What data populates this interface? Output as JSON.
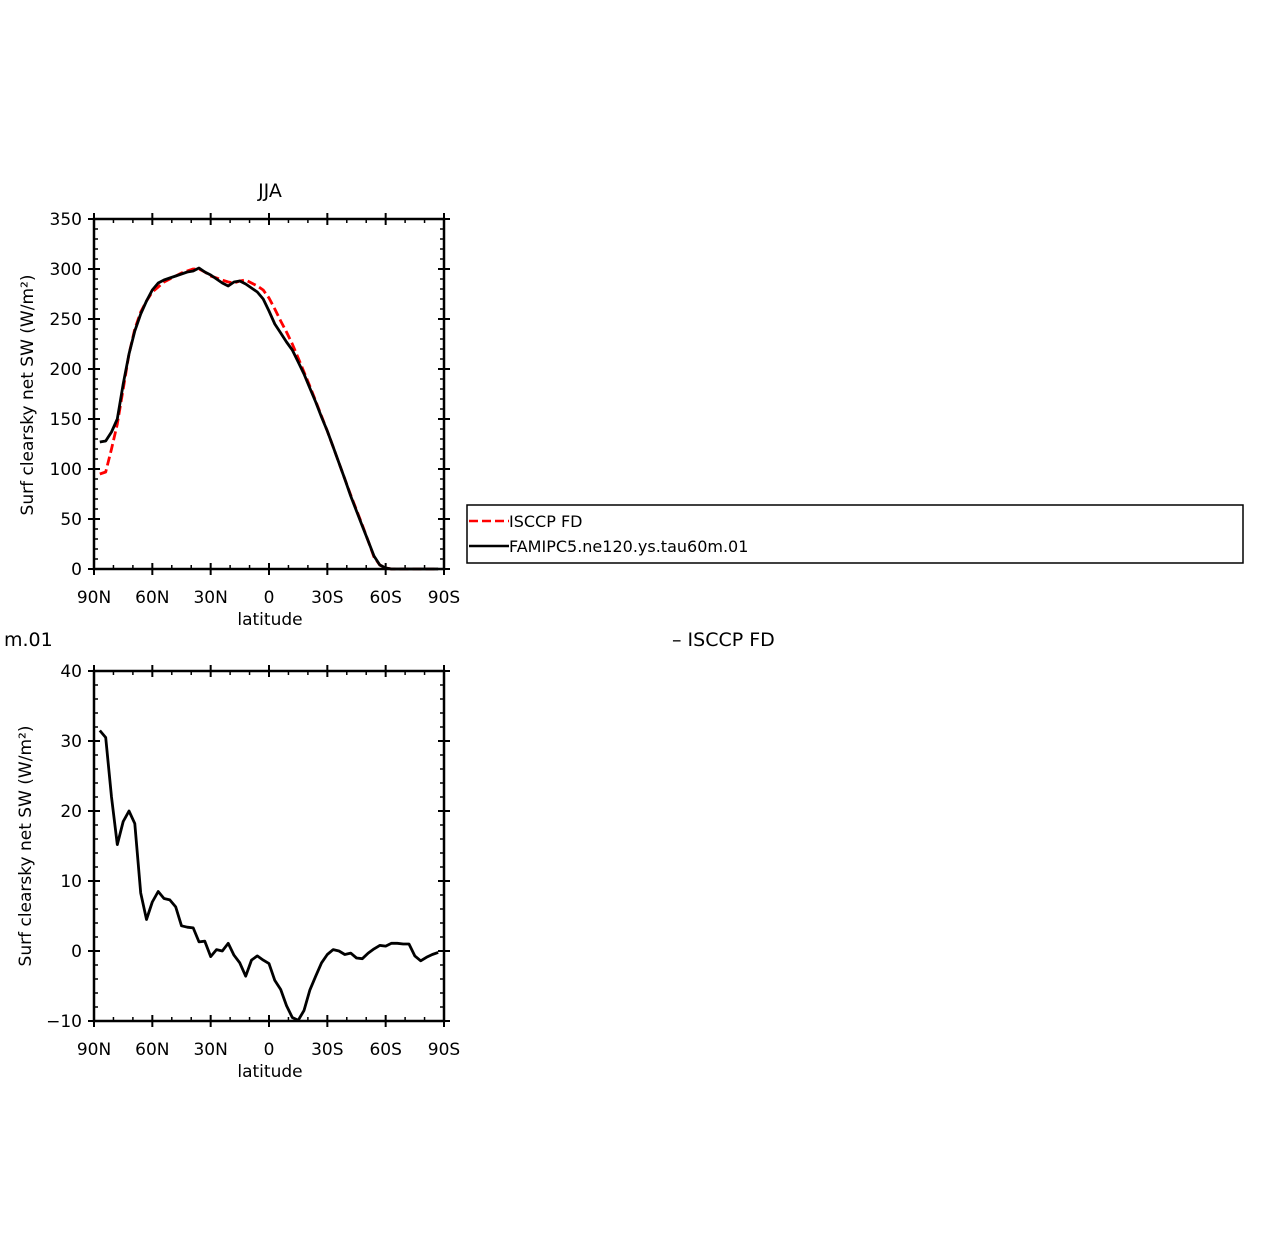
{
  "clipped_title_left": "m.01",
  "clipped_title_right": "– ISCCP FD",
  "chart_data": [
    {
      "type": "line",
      "title": "JJA",
      "xlabel": "latitude",
      "ylabel": "Surf clearsky net SW (W/m²)",
      "xlim": [
        90,
        -90
      ],
      "ylim": [
        0,
        350
      ],
      "yticks": [
        0,
        50,
        100,
        150,
        200,
        250,
        300,
        350
      ],
      "ytick_labels": [
        "0",
        "50",
        "100",
        "150",
        "200",
        "250",
        "300",
        "350"
      ],
      "xticks": [
        90,
        60,
        30,
        0,
        -30,
        -60,
        -90
      ],
      "xtick_labels": [
        "90N",
        "60N",
        "30N",
        "0",
        "30S",
        "60S",
        "90S"
      ],
      "grid": false,
      "legend": {
        "placement": "right",
        "entries": [
          "ISCCP FD",
          "FAMIPC5.ne120.ys.tau60m.01"
        ]
      },
      "series": [
        {
          "name": "ISCCP FD",
          "color": "#ff0000",
          "dash": "dashed",
          "x": [
            87,
            84,
            81,
            78,
            75,
            72,
            69,
            66,
            63,
            60,
            57,
            54,
            51,
            48,
            45,
            42,
            39,
            36,
            33,
            30,
            27,
            24,
            21,
            18,
            15,
            12,
            9,
            6,
            3,
            0,
            -3,
            -6,
            -9,
            -12,
            -15,
            -18,
            -21,
            -24,
            -27,
            -30,
            -33,
            -36,
            -39,
            -42,
            -45,
            -48,
            -51,
            -54,
            -57,
            -60,
            -63,
            -66,
            -69,
            -72,
            -75,
            -78,
            -81,
            -84,
            -87
          ],
          "values": [
            95,
            97,
            120,
            145,
            180,
            215,
            240,
            257,
            268,
            277,
            282,
            287,
            290,
            293,
            296,
            298,
            300,
            300,
            297,
            293,
            291,
            289,
            287,
            286,
            288,
            289,
            286,
            283,
            279,
            271,
            260,
            248,
            237,
            225,
            211,
            197,
            183,
            168,
            153,
            138,
            122,
            106,
            90,
            74,
            59,
            44,
            28,
            12,
            4,
            1,
            0,
            0,
            0,
            0,
            0,
            0,
            0,
            0,
            0
          ]
        },
        {
          "name": "FAMIPC5.ne120.ys.tau60m.01",
          "color": "#000000",
          "dash": "solid",
          "x": [
            87,
            84,
            81,
            78,
            75,
            72,
            69,
            66,
            63,
            60,
            57,
            54,
            51,
            48,
            45,
            42,
            39,
            36,
            33,
            30,
            27,
            24,
            21,
            18,
            15,
            12,
            9,
            6,
            3,
            0,
            -3,
            -6,
            -9,
            -12,
            -15,
            -18,
            -21,
            -24,
            -27,
            -30,
            -33,
            -36,
            -39,
            -42,
            -45,
            -48,
            -51,
            -54,
            -57,
            -60,
            -63,
            -66,
            -69,
            -72,
            -75,
            -78,
            -81,
            -84,
            -87
          ],
          "values": [
            127,
            128,
            137,
            150,
            185,
            215,
            238,
            255,
            268,
            279,
            286,
            289,
            291,
            293,
            295,
            297,
            298,
            301,
            297,
            294,
            290,
            286,
            283,
            287,
            288,
            285,
            281,
            277,
            270,
            258,
            245,
            236,
            227,
            219,
            207,
            195,
            181,
            167,
            152,
            138,
            122,
            106,
            90,
            73,
            58,
            43,
            28,
            13,
            4,
            1,
            0,
            0,
            0,
            0,
            0,
            0,
            0,
            0,
            0
          ]
        }
      ]
    },
    {
      "type": "line",
      "title": "",
      "xlabel": "latitude",
      "ylabel": "Surf clearsky net SW (W/m²)",
      "xlim": [
        90,
        -90
      ],
      "ylim": [
        -10,
        40
      ],
      "yticks": [
        -10,
        0,
        10,
        20,
        30,
        40
      ],
      "ytick_labels": [
        "−10",
        "0",
        "10",
        "20",
        "30",
        "40"
      ],
      "xticks": [
        90,
        60,
        30,
        0,
        -30,
        -60,
        -90
      ],
      "xtick_labels": [
        "90N",
        "60N",
        "30N",
        "0",
        "30S",
        "60S",
        "90S"
      ],
      "grid": false,
      "series": [
        {
          "color": "#000000",
          "dash": "solid",
          "x": [
            87,
            84,
            81,
            78,
            75,
            72,
            69,
            66,
            63,
            60,
            57,
            54,
            51,
            48,
            45,
            42,
            39,
            36,
            33,
            30,
            27,
            24,
            21,
            18,
            15,
            12,
            9,
            6,
            3,
            0,
            -3,
            -6,
            -9,
            -12,
            -15,
            -18,
            -21,
            -24,
            -27,
            -30,
            -33,
            -36,
            -39,
            -42,
            -45,
            -48,
            -51,
            -54,
            -57,
            -60,
            -63,
            -66,
            -69,
            -72,
            -75,
            -78,
            -81,
            -84,
            -87
          ],
          "values": [
            31.5,
            30.5,
            22,
            15.2,
            18.5,
            20,
            18.2,
            8.3,
            4.5,
            7,
            8.5,
            7.5,
            7.3,
            6.3,
            3.6,
            3.4,
            3.3,
            1.3,
            1.4,
            -0.8,
            0.2,
            0,
            1.1,
            -0.6,
            -1.7,
            -3.6,
            -1.3,
            -0.7,
            -1.3,
            -1.8,
            -4.2,
            -5.5,
            -7.8,
            -9.5,
            -9.9,
            -8.5,
            -5.6,
            -3.6,
            -1.7,
            -0.5,
            0.2,
            0,
            -0.5,
            -0.3,
            -1,
            -1.1,
            -0.3,
            0.3,
            0.8,
            0.7,
            1.1,
            1.1,
            1,
            1,
            -0.7,
            -1.4,
            -0.9,
            -0.5,
            -0.2
          ]
        }
      ]
    }
  ]
}
